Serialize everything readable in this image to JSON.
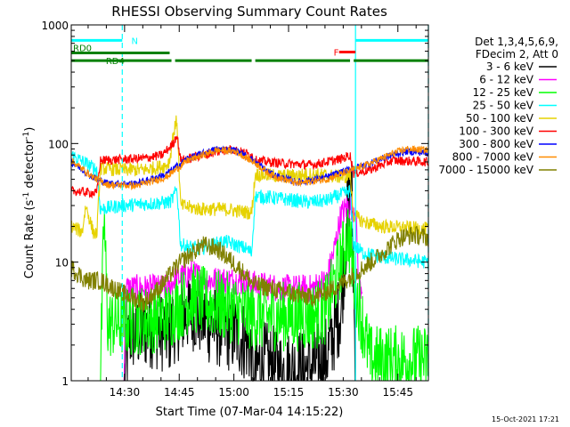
{
  "chart_data": {
    "type": "line",
    "title": "RHESSI Observing Summary Count Rates",
    "xlabel": "Start Time (07-Mar-04 14:15:22)",
    "ylabel_parts": [
      "Count Rate (s",
      "-1",
      " detector",
      "-1",
      ")"
    ],
    "y_scale": "log",
    "ylim": [
      1,
      1000
    ],
    "xlim_minutes": [
      0,
      98
    ],
    "y_ticks": [
      "1",
      "10",
      "100",
      "1000"
    ],
    "x_ticks": [
      {
        "label": "14:30",
        "minute": 14.63
      },
      {
        "label": "14:45",
        "minute": 29.63
      },
      {
        "label": "15:00",
        "minute": 44.63
      },
      {
        "label": "15:15",
        "minute": 59.63
      },
      {
        "label": "15:30",
        "minute": 74.63
      },
      {
        "label": "15:45",
        "minute": 89.63
      }
    ],
    "legend_header": [
      "Det 1,3,4,5,6,9,",
      "FDecim 2, Att 0"
    ],
    "legend_position": "right",
    "footer": "15-Oct-2021 17:21",
    "flags": [
      {
        "name": "N",
        "color": "#00ffff",
        "segments": [
          [
            0,
            14
          ],
          [
            78,
            98
          ]
        ],
        "level": 740,
        "label_at": 16.5
      },
      {
        "name": "F",
        "color": "#ff0000",
        "segments": [
          [
            73.5,
            78
          ]
        ],
        "level": 590,
        "label_at": 72
      },
      {
        "name": "RD0",
        "color": "#008000",
        "segments": [
          [
            0,
            27
          ]
        ],
        "level": 580,
        "label_at": 0.5
      },
      {
        "name": "RD4",
        "color": "#008000",
        "segments": [
          [
            0,
            27.5
          ],
          [
            28.5,
            49.5
          ],
          [
            50.5,
            76.5
          ],
          [
            77.5,
            98
          ]
        ],
        "level": 500,
        "label_at": 9.5
      }
    ],
    "vlines": [
      {
        "minute": 14.0,
        "style": "dashed",
        "color": "#00ffff"
      },
      {
        "minute": 78.0,
        "style": "solid",
        "color": "#00ffff"
      },
      {
        "minute": 98.0,
        "style": "dashed",
        "color": "#00ffff"
      }
    ],
    "series": [
      {
        "name": "3 - 6 keV",
        "color": "#000000",
        "noise": 0.35,
        "points": [
          [
            0,
            1
          ],
          [
            14.5,
            1
          ],
          [
            16,
            2.5
          ],
          [
            22,
            2.8
          ],
          [
            27,
            2.5
          ],
          [
            28,
            3
          ],
          [
            33,
            4
          ],
          [
            38,
            3
          ],
          [
            45,
            2.5
          ],
          [
            49,
            2
          ],
          [
            50,
            1
          ],
          [
            52,
            1.5
          ],
          [
            58,
            1.2
          ],
          [
            66,
            1.3
          ],
          [
            70,
            1.6
          ],
          [
            74,
            4
          ],
          [
            76,
            30
          ],
          [
            77,
            40
          ],
          [
            78,
            1
          ],
          [
            80,
            1
          ],
          [
            98,
            1
          ]
        ]
      },
      {
        "name": "6 - 12 keV",
        "color": "#ff00ff",
        "noise": 0.12,
        "points": [
          [
            0,
            1
          ],
          [
            14.5,
            1
          ],
          [
            15,
            6
          ],
          [
            27,
            6
          ],
          [
            28,
            7
          ],
          [
            33,
            8
          ],
          [
            38,
            7
          ],
          [
            45,
            7
          ],
          [
            50,
            6.5
          ],
          [
            58,
            6
          ],
          [
            66,
            6
          ],
          [
            70,
            7
          ],
          [
            72,
            12
          ],
          [
            74,
            25
          ],
          [
            76,
            30
          ],
          [
            78,
            28
          ],
          [
            79,
            6
          ],
          [
            80,
            6.5
          ]
        ]
      },
      {
        "name": "12 - 25 keV",
        "color": "#00ff00",
        "noise": 0.3,
        "points": [
          [
            0,
            1
          ],
          [
            8,
            1
          ],
          [
            9,
            25
          ],
          [
            10,
            3
          ],
          [
            27,
            3.5
          ],
          [
            28,
            4
          ],
          [
            33,
            5
          ],
          [
            38,
            4.5
          ],
          [
            45,
            4
          ],
          [
            50,
            3.5
          ],
          [
            58,
            3.5
          ],
          [
            66,
            3.5
          ],
          [
            70,
            4
          ],
          [
            74,
            10
          ],
          [
            76,
            18
          ],
          [
            78,
            6
          ],
          [
            80,
            3
          ],
          [
            82,
            1.5
          ],
          [
            90,
            1.5
          ],
          [
            98,
            1.5
          ]
        ]
      },
      {
        "name": "25 - 50 keV",
        "color": "#00ffff",
        "noise": 0.06,
        "points": [
          [
            0,
            80
          ],
          [
            7,
            60
          ],
          [
            8,
            28
          ],
          [
            14,
            30
          ],
          [
            27,
            32
          ],
          [
            28,
            35
          ],
          [
            29,
            42
          ],
          [
            30,
            14
          ],
          [
            35,
            13
          ],
          [
            42,
            15
          ],
          [
            48,
            13
          ],
          [
            49.5,
            12
          ],
          [
            50.5,
            36
          ],
          [
            55,
            35
          ],
          [
            65,
            32
          ],
          [
            70,
            33
          ],
          [
            75,
            38
          ],
          [
            76.5,
            40
          ],
          [
            77.5,
            14
          ],
          [
            80,
            12
          ],
          [
            85,
            11
          ],
          [
            98,
            10
          ]
        ]
      },
      {
        "name": "50 - 100 keV",
        "color": "#e6d200",
        "noise": 0.06,
        "points": [
          [
            0,
            20
          ],
          [
            3,
            18
          ],
          [
            4,
            30
          ],
          [
            6,
            18
          ],
          [
            7,
            17
          ],
          [
            8,
            62
          ],
          [
            14,
            60
          ],
          [
            20,
            60
          ],
          [
            26,
            65
          ],
          [
            27,
            72
          ],
          [
            28,
            120
          ],
          [
            29,
            160
          ],
          [
            30,
            30
          ],
          [
            35,
            28
          ],
          [
            42,
            28
          ],
          [
            49.5,
            26
          ],
          [
            50.5,
            55
          ],
          [
            58,
            53
          ],
          [
            66,
            55
          ],
          [
            75,
            52
          ],
          [
            76.5,
            55
          ],
          [
            77.5,
            25
          ],
          [
            80,
            22
          ],
          [
            85,
            20
          ],
          [
            98,
            19
          ]
        ]
      },
      {
        "name": "100 - 300 keV",
        "color": "#ff0000",
        "noise": 0.04,
        "points": [
          [
            0,
            40
          ],
          [
            7,
            38
          ],
          [
            8,
            72
          ],
          [
            20,
            75
          ],
          [
            25,
            80
          ],
          [
            28,
            100
          ],
          [
            29,
            120
          ],
          [
            30,
            72
          ],
          [
            40,
            85
          ],
          [
            44,
            90
          ],
          [
            49.5,
            80
          ],
          [
            50.5,
            72
          ],
          [
            58,
            68
          ],
          [
            66,
            66
          ],
          [
            74,
            74
          ],
          [
            76.5,
            80
          ],
          [
            77.5,
            56
          ],
          [
            82,
            60
          ],
          [
            88,
            72
          ],
          [
            98,
            70
          ]
        ]
      },
      {
        "name": "300 - 800 keV",
        "color": "#0000ff",
        "noise": 0.03,
        "points": [
          [
            0,
            70
          ],
          [
            6,
            52
          ],
          [
            10,
            46
          ],
          [
            18,
            46
          ],
          [
            26,
            55
          ],
          [
            32,
            75
          ],
          [
            40,
            90
          ],
          [
            45,
            88
          ],
          [
            50,
            72
          ],
          [
            55,
            55
          ],
          [
            62,
            47
          ],
          [
            70,
            52
          ],
          [
            76,
            60
          ],
          [
            82,
            68
          ],
          [
            88,
            80
          ],
          [
            92,
            86
          ],
          [
            98,
            83
          ]
        ]
      },
      {
        "name": "800 - 7000 keV",
        "color": "#ff8c00",
        "noise": 0.03,
        "points": [
          [
            0,
            72
          ],
          [
            6,
            52
          ],
          [
            10,
            45
          ],
          [
            18,
            44
          ],
          [
            26,
            52
          ],
          [
            32,
            72
          ],
          [
            40,
            88
          ],
          [
            45,
            86
          ],
          [
            50,
            70
          ],
          [
            55,
            54
          ],
          [
            62,
            46
          ],
          [
            70,
            50
          ],
          [
            76,
            58
          ],
          [
            82,
            68
          ],
          [
            88,
            82
          ],
          [
            92,
            90
          ],
          [
            98,
            88
          ]
        ]
      },
      {
        "name": "7000 - 15000 keV",
        "color": "#808000",
        "noise": 0.08,
        "points": [
          [
            0,
            9
          ],
          [
            4,
            7
          ],
          [
            8,
            7
          ],
          [
            14,
            5.5
          ],
          [
            20,
            4.5
          ],
          [
            24,
            6
          ],
          [
            30,
            10
          ],
          [
            36,
            14
          ],
          [
            40,
            13
          ],
          [
            46,
            9
          ],
          [
            50,
            6.5
          ],
          [
            60,
            5.5
          ],
          [
            66,
            5
          ],
          [
            72,
            6
          ],
          [
            78,
            8
          ],
          [
            84,
            11
          ],
          [
            90,
            16
          ],
          [
            94,
            17
          ],
          [
            98,
            16
          ]
        ]
      }
    ]
  }
}
